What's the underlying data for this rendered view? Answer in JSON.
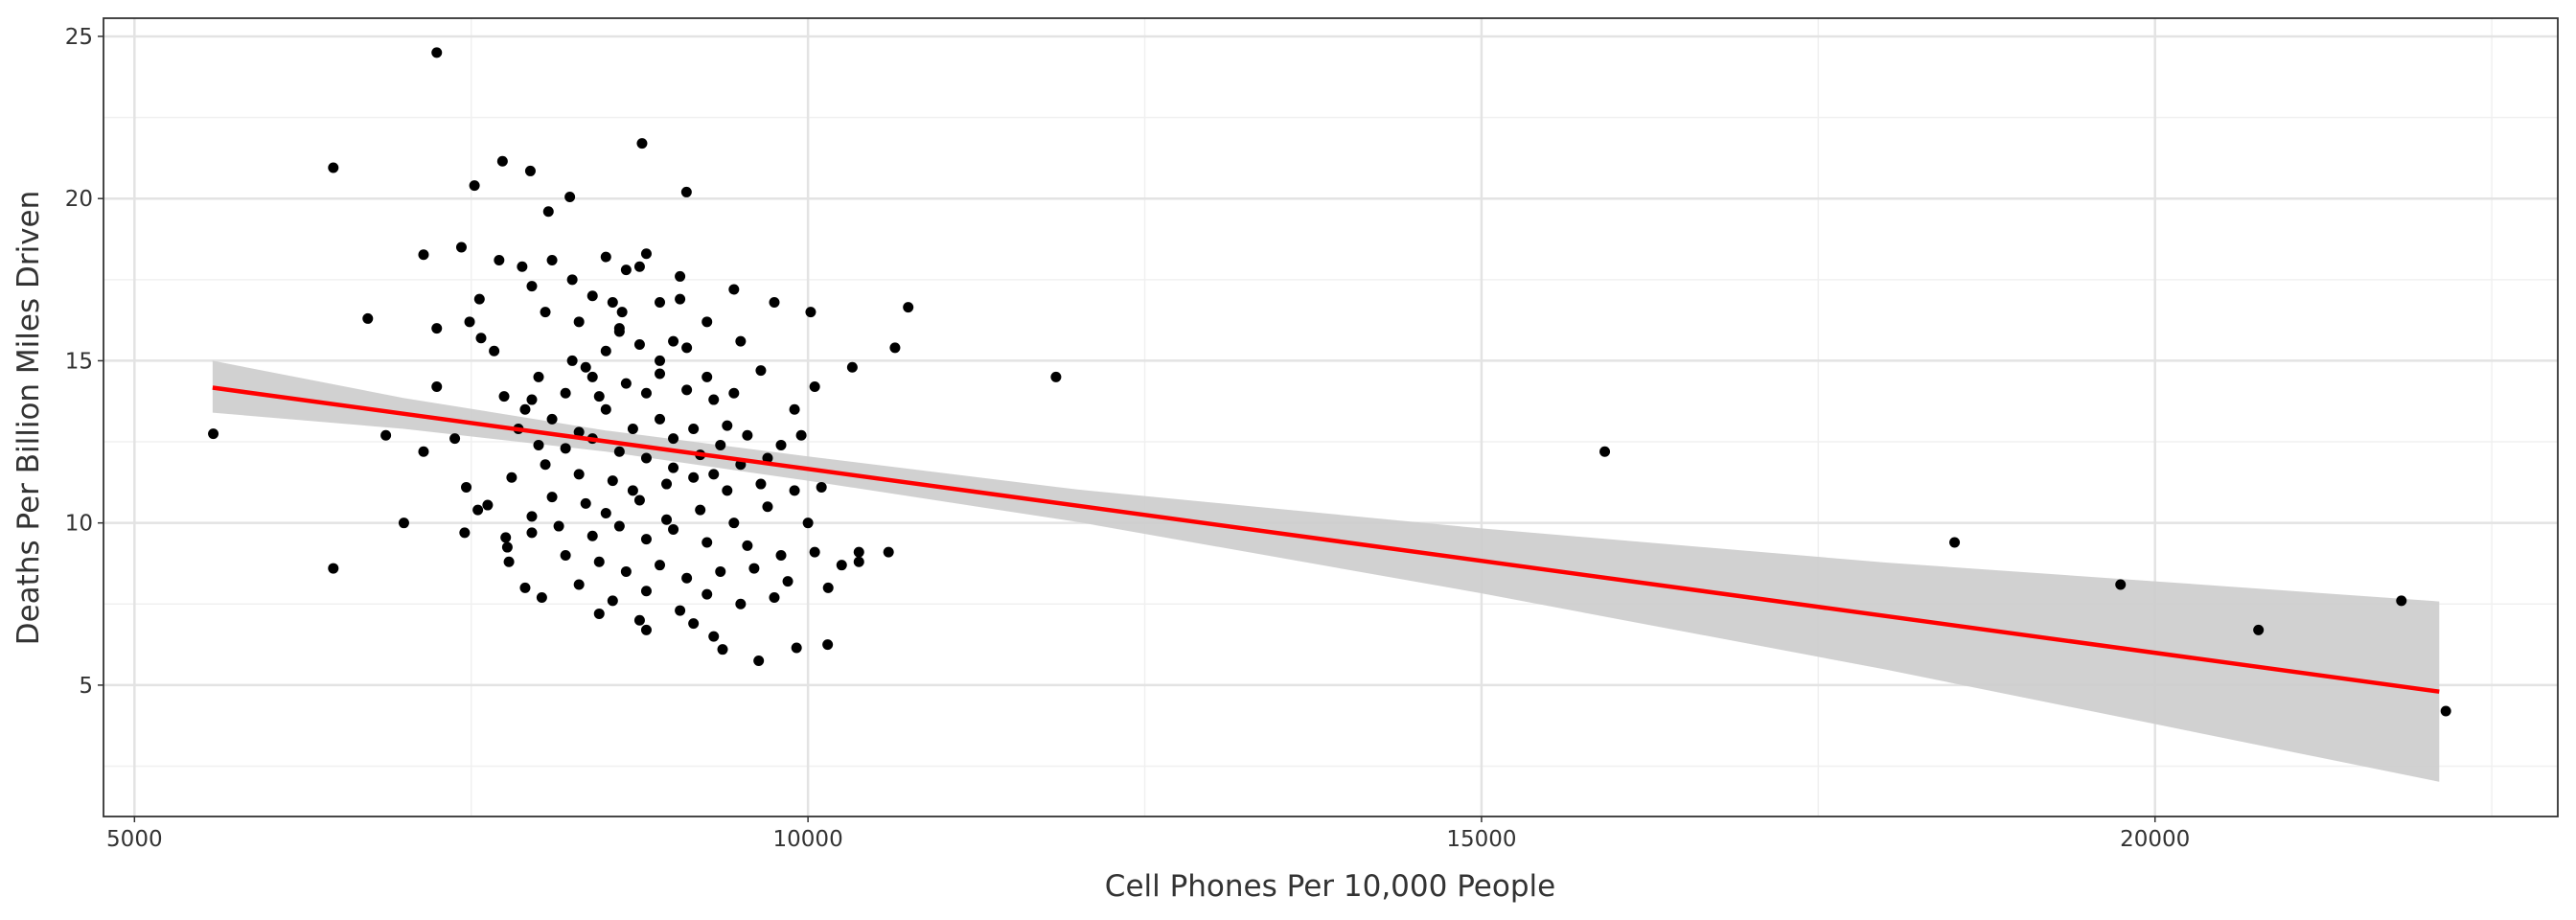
{
  "chart_data": {
    "type": "scatter",
    "x_label": "Cell Phones Per 10,000 People",
    "y_label": "Deaths Per Billion Miles Driven",
    "xlim": [
      4770,
      22990
    ],
    "ylim": [
      0.95,
      25.56
    ],
    "xticks": [
      5000,
      10000,
      15000,
      20000
    ],
    "yticks": [
      5,
      10,
      15,
      20,
      25
    ],
    "xminor": [
      7500,
      12500,
      17500,
      22500
    ],
    "yminor": [
      2.5,
      7.5,
      12.5,
      17.5,
      22.5
    ],
    "grid": true,
    "color": "#000000",
    "x": [
      5585,
      6476,
      6476,
      6732,
      6866,
      7000,
      7146,
      7146,
      7244,
      7244,
      7244,
      7378,
      7427,
      7451,
      7463,
      7488,
      7524,
      7561,
      7573,
      7549,
      7622,
      7670,
      7707,
      7732,
      7744,
      7756,
      7768,
      7780,
      7878,
      7939,
      8024,
      8073,
      8232,
      8768,
      9098,
      10744,
      10646,
      10329,
      10598,
      10378,
      10378,
      10146,
      9915,
      9634,
      9366,
      11841,
      15915,
      18512,
      19744,
      20768,
      21829,
      22159,
      8100,
      8500,
      8650,
      8800,
      8750,
      9050,
      9450,
      9750,
      10020,
      8400,
      8550,
      8620,
      8900,
      9050,
      8300,
      8050,
      7950,
      8600,
      8750,
      8900,
      9000,
      9250,
      9500,
      8500,
      8250,
      8000,
      8200,
      8400,
      8450,
      8650,
      8800,
      8900,
      9100,
      9250,
      9300,
      9450,
      9650,
      9900,
      10050,
      7950,
      8100,
      8300,
      8500,
      8700,
      8900,
      9000,
      9150,
      9350,
      9550,
      9800,
      8200,
      8400,
      8600,
      8800,
      9000,
      9200,
      9300,
      8050,
      8300,
      8550,
      8700,
      8950,
      9150,
      9400,
      9650,
      9900,
      10100,
      8100,
      8350,
      8500,
      8750,
      8950,
      9200,
      9450,
      9700,
      10000,
      7950,
      8150,
      8400,
      8600,
      8800,
      9000,
      9250,
      9550,
      9800,
      10050,
      8200,
      8450,
      8650,
      8900,
      9100,
      9350,
      9600,
      9850,
      7900,
      8300,
      8550,
      8800,
      9050,
      9250,
      9500,
      9750,
      8450,
      8750,
      9150,
      8800,
      9300,
      10150,
      10250,
      7850,
      7900,
      8000,
      7800,
      7950,
      8250,
      8600,
      9100,
      9400,
      9500,
      9700,
      9950,
      8350
    ],
    "values": [
      12.75,
      20.95,
      8.6,
      16.3,
      12.7,
      10.0,
      18.27,
      12.2,
      24.5,
      16.0,
      14.2,
      12.6,
      18.5,
      9.7,
      11.1,
      16.2,
      20.4,
      16.9,
      15.7,
      10.4,
      10.55,
      15.3,
      18.1,
      21.15,
      13.9,
      9.55,
      9.25,
      8.8,
      17.9,
      20.85,
      7.7,
      19.6,
      20.05,
      21.7,
      20.2,
      16.65,
      15.4,
      14.8,
      9.1,
      9.1,
      8.8,
      6.25,
      6.15,
      5.75,
      6.1,
      14.5,
      12.2,
      9.4,
      8.1,
      6.7,
      7.6,
      4.2,
      18.1,
      18.2,
      17.8,
      18.3,
      17.9,
      17.6,
      17.2,
      16.8,
      16.5,
      17.0,
      16.8,
      16.5,
      16.8,
      16.9,
      16.2,
      16.5,
      17.3,
      15.9,
      15.5,
      15.0,
      15.6,
      16.2,
      15.6,
      15.3,
      15.0,
      14.5,
      14.0,
      14.5,
      13.9,
      14.3,
      14.0,
      14.6,
      14.1,
      14.5,
      13.8,
      14.0,
      14.7,
      13.5,
      14.2,
      13.8,
      13.2,
      12.8,
      13.5,
      12.9,
      13.2,
      12.6,
      12.9,
      12.4,
      12.7,
      12.4,
      12.3,
      12.6,
      12.2,
      12.0,
      11.7,
      12.1,
      11.5,
      11.8,
      11.5,
      11.3,
      11.0,
      11.2,
      11.4,
      11.0,
      11.2,
      11.0,
      11.1,
      10.8,
      10.6,
      10.3,
      10.7,
      10.1,
      10.4,
      10.0,
      10.5,
      10.0,
      10.2,
      9.9,
      9.6,
      9.9,
      9.5,
      9.8,
      9.4,
      9.3,
      9.0,
      9.1,
      9.0,
      8.8,
      8.5,
      8.7,
      8.3,
      8.5,
      8.6,
      8.2,
      8.0,
      8.1,
      7.6,
      7.9,
      7.3,
      7.8,
      7.5,
      7.7,
      7.2,
      7.0,
      6.9,
      6.7,
      6.5,
      8.0,
      8.7,
      12.9,
      13.5,
      12.4,
      11.4,
      9.7,
      17.5,
      16.0,
      15.4,
      13.0,
      11.8,
      12.0,
      12.7,
      14.8
    ],
    "fit": {
      "color": "#ff0000",
      "x": [
        5580,
        22110
      ],
      "y": [
        14.17,
        4.8
      ]
    },
    "band": {
      "color": "#cccccc",
      "x": [
        5580,
        7000,
        8500,
        10000,
        12000,
        15000,
        18000,
        20000,
        22110
      ],
      "lower": [
        13.4,
        12.9,
        12.2,
        11.3,
        10.03,
        7.83,
        5.48,
        3.8,
        2.02
      ],
      "upper": [
        15.0,
        13.85,
        12.85,
        12.05,
        11.03,
        9.83,
        8.78,
        8.2,
        7.58
      ]
    }
  }
}
